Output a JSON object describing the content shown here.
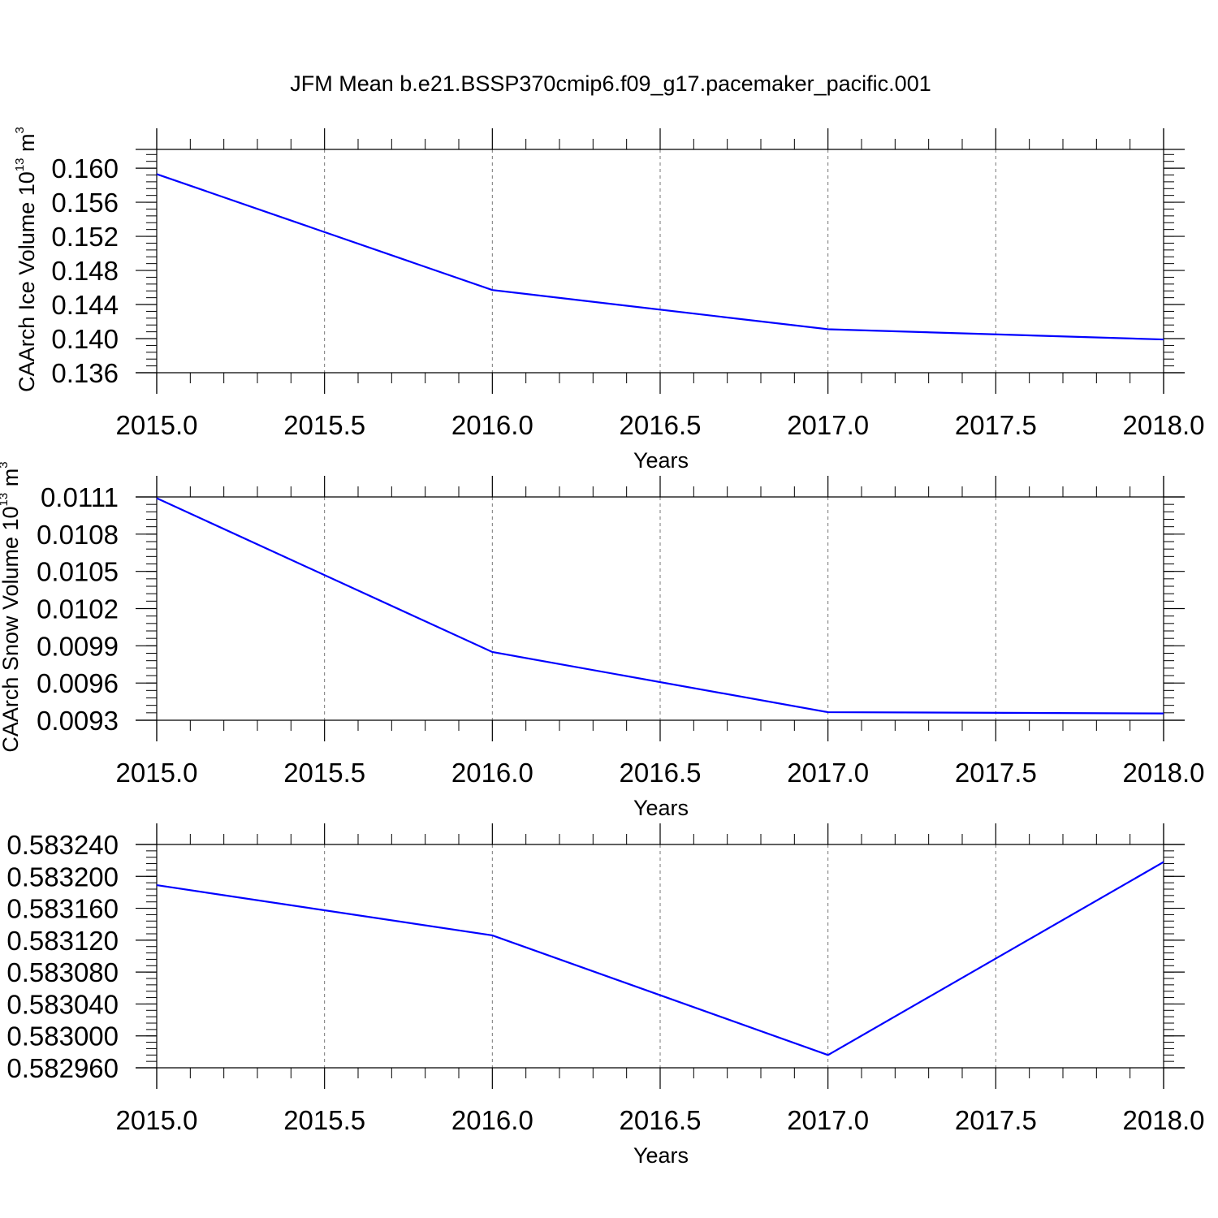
{
  "title": "JFM Mean b.e21.BSSP370cmip6.f09_g17.pacemaker_pacific.001",
  "chart_data": [
    {
      "type": "line",
      "xlabel": "Years",
      "ylabel": "CAArch Ice Volume 10",
      "ylabel_exponent": "13",
      "ylabel_unit": " m",
      "ylabel_unit_exponent": "3",
      "xlim": [
        2015.0,
        2018.0
      ],
      "ylim": [
        0.136,
        0.1622
      ],
      "xticks": [
        2015.0,
        2015.5,
        2016.0,
        2016.5,
        2017.0,
        2017.5,
        2018.0
      ],
      "xtick_labels": [
        "2015.0",
        "2015.5",
        "2016.0",
        "2016.5",
        "2017.0",
        "2017.5",
        "2018.0"
      ],
      "yticks": [
        0.136,
        0.14,
        0.144,
        0.148,
        0.152,
        0.156,
        0.16
      ],
      "ytick_labels": [
        "0.136",
        "0.140",
        "0.144",
        "0.148",
        "0.152",
        "0.156",
        "0.160"
      ],
      "x": [
        2015.0,
        2016.0,
        2017.0,
        2018.0
      ],
      "values": [
        0.1593,
        0.1457,
        0.1411,
        0.1399
      ],
      "color": "#0000ff",
      "grid": "vertical-dashed"
    },
    {
      "type": "line",
      "xlabel": "Years",
      "ylabel": "CAArch Snow Volume 10",
      "ylabel_exponent": "13",
      "ylabel_unit": " m",
      "ylabel_unit_exponent": "3",
      "xlim": [
        2015.0,
        2018.0
      ],
      "ylim": [
        0.0093,
        0.0111
      ],
      "xticks": [
        2015.0,
        2015.5,
        2016.0,
        2016.5,
        2017.0,
        2017.5,
        2018.0
      ],
      "xtick_labels": [
        "2015.0",
        "2015.5",
        "2016.0",
        "2016.5",
        "2017.0",
        "2017.5",
        "2018.0"
      ],
      "yticks": [
        0.0093,
        0.0096,
        0.0099,
        0.0102,
        0.0105,
        0.0108,
        0.0111
      ],
      "ytick_labels": [
        "0.0093",
        "0.0096",
        "0.0099",
        "0.0102",
        "0.0105",
        "0.0108",
        "0.0111"
      ],
      "x": [
        2015.0,
        2016.0,
        2017.0,
        2018.0
      ],
      "values": [
        0.01109,
        0.00985,
        0.009365,
        0.009355
      ],
      "color": "#0000ff",
      "grid": "vertical-dashed"
    },
    {
      "type": "line",
      "xlabel": "Years",
      "ylabel": "",
      "xlim": [
        2015.0,
        2018.0
      ],
      "ylim": [
        0.58296,
        0.58324
      ],
      "xticks": [
        2015.0,
        2015.5,
        2016.0,
        2016.5,
        2017.0,
        2017.5,
        2018.0
      ],
      "xtick_labels": [
        "2015.0",
        "2015.5",
        "2016.0",
        "2016.5",
        "2017.0",
        "2017.5",
        "2018.0"
      ],
      "yticks": [
        0.58296,
        0.583,
        0.58304,
        0.58308,
        0.58312,
        0.58316,
        0.5832,
        0.58324
      ],
      "ytick_labels": [
        "0.582960",
        "0.583000",
        "0.583040",
        "0.583080",
        "0.583120",
        "0.583160",
        "0.583200",
        "0.583240"
      ],
      "x": [
        2015.0,
        2016.0,
        2017.0,
        2018.0
      ],
      "values": [
        0.583189,
        0.583126,
        0.582976,
        0.583218
      ],
      "color": "#0000ff",
      "grid": "vertical-dashed"
    }
  ]
}
